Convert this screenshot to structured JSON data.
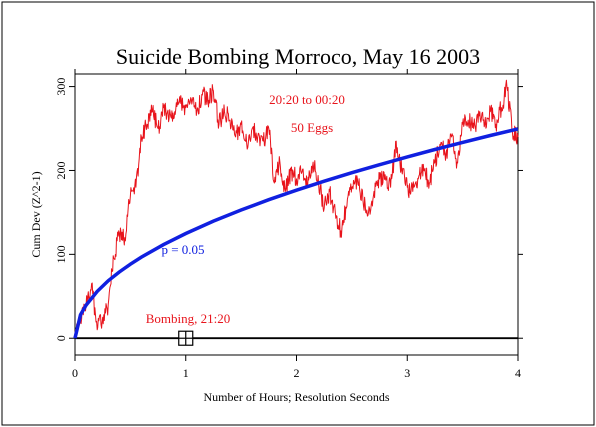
{
  "chart_data": {
    "type": "line",
    "title": "Suicide Bombing Morroco, May 16 2003",
    "xlabel": "Number of Hours; Resolution Seconds",
    "ylabel": "Cum Dev (Z^2-1)",
    "xlim": [
      0,
      4
    ],
    "ylim": [
      -20,
      315
    ],
    "x_ticks": [
      0,
      1,
      2,
      3,
      4
    ],
    "x_tick_labels": [
      "0",
      "1",
      "2",
      "3",
      "4"
    ],
    "y_ticks": [
      0,
      100,
      200,
      300
    ],
    "y_tick_labels": [
      "0",
      "100",
      "200",
      "300"
    ],
    "annotations": {
      "time_range": "20:20 to 00:20",
      "eggs": "50 Eggs",
      "p_label": "p = 0.05",
      "event_label": "Bombing, 21:20"
    },
    "event_marker": {
      "x": 1.0,
      "y": 0
    },
    "series": [
      {
        "color": "#e8141c",
        "x": [
          0,
          0.05,
          0.1,
          0.15,
          0.2,
          0.25,
          0.3,
          0.35,
          0.4,
          0.45,
          0.5,
          0.55,
          0.6,
          0.65,
          0.7,
          0.75,
          0.8,
          0.85,
          0.9,
          0.95,
          1.0,
          1.05,
          1.1,
          1.15,
          1.2,
          1.25,
          1.3,
          1.35,
          1.4,
          1.45,
          1.5,
          1.55,
          1.6,
          1.65,
          1.7,
          1.75,
          1.8,
          1.85,
          1.9,
          1.95,
          2.0,
          2.05,
          2.1,
          2.15,
          2.2,
          2.25,
          2.3,
          2.35,
          2.4,
          2.45,
          2.5,
          2.55,
          2.6,
          2.65,
          2.7,
          2.75,
          2.8,
          2.85,
          2.9,
          2.95,
          3.0,
          3.05,
          3.1,
          3.15,
          3.2,
          3.25,
          3.3,
          3.35,
          3.4,
          3.45,
          3.5,
          3.55,
          3.6,
          3.65,
          3.7,
          3.75,
          3.8,
          3.85,
          3.9,
          3.95,
          4.0
        ],
        "values": [
          5,
          20,
          40,
          65,
          10,
          25,
          40,
          95,
          125,
          120,
          170,
          180,
          240,
          255,
          270,
          250,
          275,
          262,
          270,
          280,
          275,
          285,
          270,
          290,
          285,
          295,
          255,
          270,
          260,
          240,
          255,
          232,
          250,
          240,
          235,
          250,
          185,
          210,
          175,
          200,
          190,
          198,
          180,
          210,
          185,
          155,
          175,
          150,
          128,
          155,
          180,
          190,
          165,
          150,
          175,
          190,
          195,
          180,
          235,
          200,
          180,
          175,
          190,
          200,
          185,
          210,
          230,
          220,
          240,
          210,
          255,
          260,
          250,
          265,
          255,
          270,
          255,
          275,
          300,
          245,
          240
        ]
      },
      {
        "name": "p = 0.05",
        "color": "#1020e0",
        "function": "1.645*sqrt(2*3600*x)",
        "x": [
          0,
          0.05,
          0.1,
          0.2,
          0.3,
          0.4,
          0.5,
          0.6,
          0.8,
          1.0,
          1.25,
          1.5,
          1.75,
          2.0,
          2.25,
          2.5,
          2.75,
          3.0,
          3.25,
          3.5,
          3.75,
          4.0
        ],
        "values": [
          0,
          27.9,
          39.5,
          55.8,
          68.4,
          78.9,
          88.3,
          96.7,
          111.6,
          124.8,
          139.6,
          152.9,
          165.1,
          176.5,
          187.2,
          197.3,
          206.9,
          216.2,
          225.0,
          233.5,
          241.7,
          249.6
        ]
      },
      {
        "name": "baseline",
        "color": "#000000",
        "x": [
          0,
          4
        ],
        "values": [
          0,
          0
        ]
      }
    ]
  }
}
